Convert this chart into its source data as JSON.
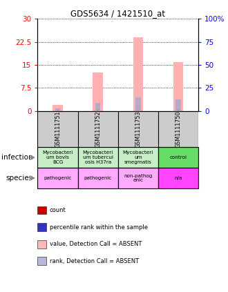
{
  "title": "GDS5634 / 1421510_at",
  "samples": [
    "GSM1111751",
    "GSM1111752",
    "GSM1111753",
    "GSM1111750"
  ],
  "pink_bars": [
    2.0,
    12.5,
    24.0,
    16.0
  ],
  "blue_bars": [
    2.5,
    9.0,
    15.0,
    12.5
  ],
  "red_bars": [
    0.3,
    0.3,
    0.3,
    0.3
  ],
  "ylim_left": [
    0,
    30
  ],
  "ylim_right": [
    0,
    100
  ],
  "yticks_left": [
    0,
    7.5,
    15,
    22.5,
    30
  ],
  "yticks_right": [
    0,
    25,
    50,
    75,
    100
  ],
  "ytick_labels_left": [
    "0",
    "7.5",
    "15",
    "22.5",
    "30"
  ],
  "ytick_labels_right": [
    "0",
    "25",
    "50",
    "75",
    "100%"
  ],
  "infection_labels": [
    "Mycobacteri\num bovis\nBCG",
    "Mycobacteri\num tubercul\nosis H37ra",
    "Mycobacteri\num\nsmegmatis",
    "control"
  ],
  "infection_colors": [
    "#c8eec8",
    "#c8eec8",
    "#c8eec8",
    "#66dd66"
  ],
  "species_labels": [
    "pathogenic",
    "pathogenic",
    "non-pathog\nenic",
    "n/a"
  ],
  "species_colors": [
    "#ffaaff",
    "#ffaaff",
    "#ffaaff",
    "#ff44ff"
  ],
  "row_labels": [
    "infection",
    "species"
  ],
  "legend_items": [
    {
      "label": "count",
      "color": "#cc0000"
    },
    {
      "label": "percentile rank within the sample",
      "color": "#3333bb"
    },
    {
      "label": "value, Detection Call = ABSENT",
      "color": "#ffb8b8"
    },
    {
      "label": "rank, Detection Call = ABSENT",
      "color": "#b8b8dd"
    }
  ],
  "pink_color": "#ffb0b0",
  "blue_color": "#aaaacc",
  "red_color": "#cc0000",
  "sample_bg": "#cccccc",
  "bar_width": 0.18
}
